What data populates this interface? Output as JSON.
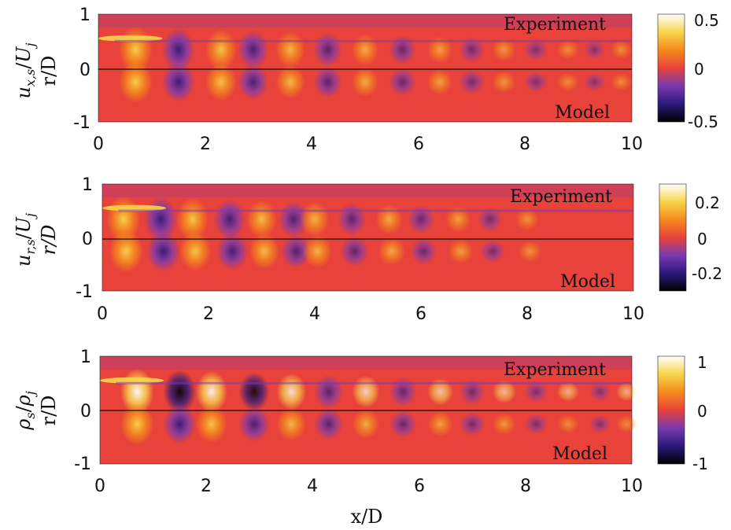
{
  "figure": {
    "xlabel": "x/D"
  },
  "chart_data": [
    {
      "type": "heatmap",
      "field": "streamwise velocity",
      "ylabel_top": "u_{x,s}/U_j",
      "ylabel_bottom": "r/D",
      "upper_label": "Experiment",
      "lower_label": "Model",
      "xlim": [
        0,
        10
      ],
      "ylim": [
        -1,
        1
      ],
      "xticks": [
        "0",
        "2",
        "4",
        "6",
        "8",
        "10"
      ],
      "yticks": [
        "1",
        "0",
        "-1"
      ],
      "colorbar": {
        "min": -0.5,
        "max": 0.5,
        "ticks": [
          "0.5",
          "0",
          "-0.5"
        ],
        "tick_values": [
          0.5,
          0,
          -0.5
        ]
      },
      "wave_crests_x": [
        0.7,
        1.5,
        2.3,
        2.9,
        3.6,
        4.3,
        5.0,
        5.7,
        6.4,
        7.0,
        7.6,
        8.2,
        8.8,
        9.3,
        9.8
      ],
      "peak_amplitude": 0.5
    },
    {
      "type": "heatmap",
      "field": "radial velocity",
      "ylabel_top": "u_{r,s}/U_j",
      "ylabel_bottom": "r/D",
      "upper_label": "Experiment",
      "lower_label": "Model",
      "xlim": [
        0,
        10
      ],
      "ylim": [
        -1,
        1
      ],
      "xticks": [
        "0",
        "2",
        "4",
        "6",
        "8",
        "10"
      ],
      "yticks": [
        "1",
        "0",
        "-1"
      ],
      "colorbar": {
        "min": -0.3,
        "max": 0.3,
        "ticks": [
          "0.2",
          "0",
          "-0.2"
        ],
        "tick_values": [
          0.2,
          0,
          -0.2
        ]
      },
      "wave_crests_x": [
        0.4,
        1.1,
        1.7,
        2.4,
        3.0,
        3.6,
        4.0,
        4.7,
        5.4,
        6.0,
        6.7,
        7.3,
        8.0
      ],
      "peak_amplitude": 0.3
    },
    {
      "type": "heatmap",
      "field": "density",
      "ylabel_top": "ρ_s/ρ_j",
      "ylabel_bottom": "r/D",
      "upper_label": "Experiment",
      "lower_label": "Model",
      "xlim": [
        0,
        10
      ],
      "ylim": [
        -1,
        1
      ],
      "xticks": [
        "0",
        "2",
        "4",
        "6",
        "8",
        "10"
      ],
      "yticks": [
        "1",
        "0",
        "-1"
      ],
      "colorbar": {
        "min": -1,
        "max": 1,
        "ticks": [
          "1",
          "0",
          "-1"
        ],
        "tick_values": [
          1,
          0,
          -1
        ]
      },
      "wave_crests_x": [
        0.7,
        1.5,
        2.1,
        2.9,
        3.6,
        4.3,
        5.0,
        5.7,
        6.4,
        7.0,
        7.6,
        8.2,
        8.8,
        9.4,
        9.9
      ],
      "peak_amplitude": 1.0
    }
  ],
  "colormap": {
    "name": "inferno-like diverging",
    "stops": [
      "#000000",
      "#2a1a7a",
      "#7a3ab0",
      "#e8423a",
      "#f48a1c",
      "#f6d54a",
      "#ffffff"
    ]
  }
}
